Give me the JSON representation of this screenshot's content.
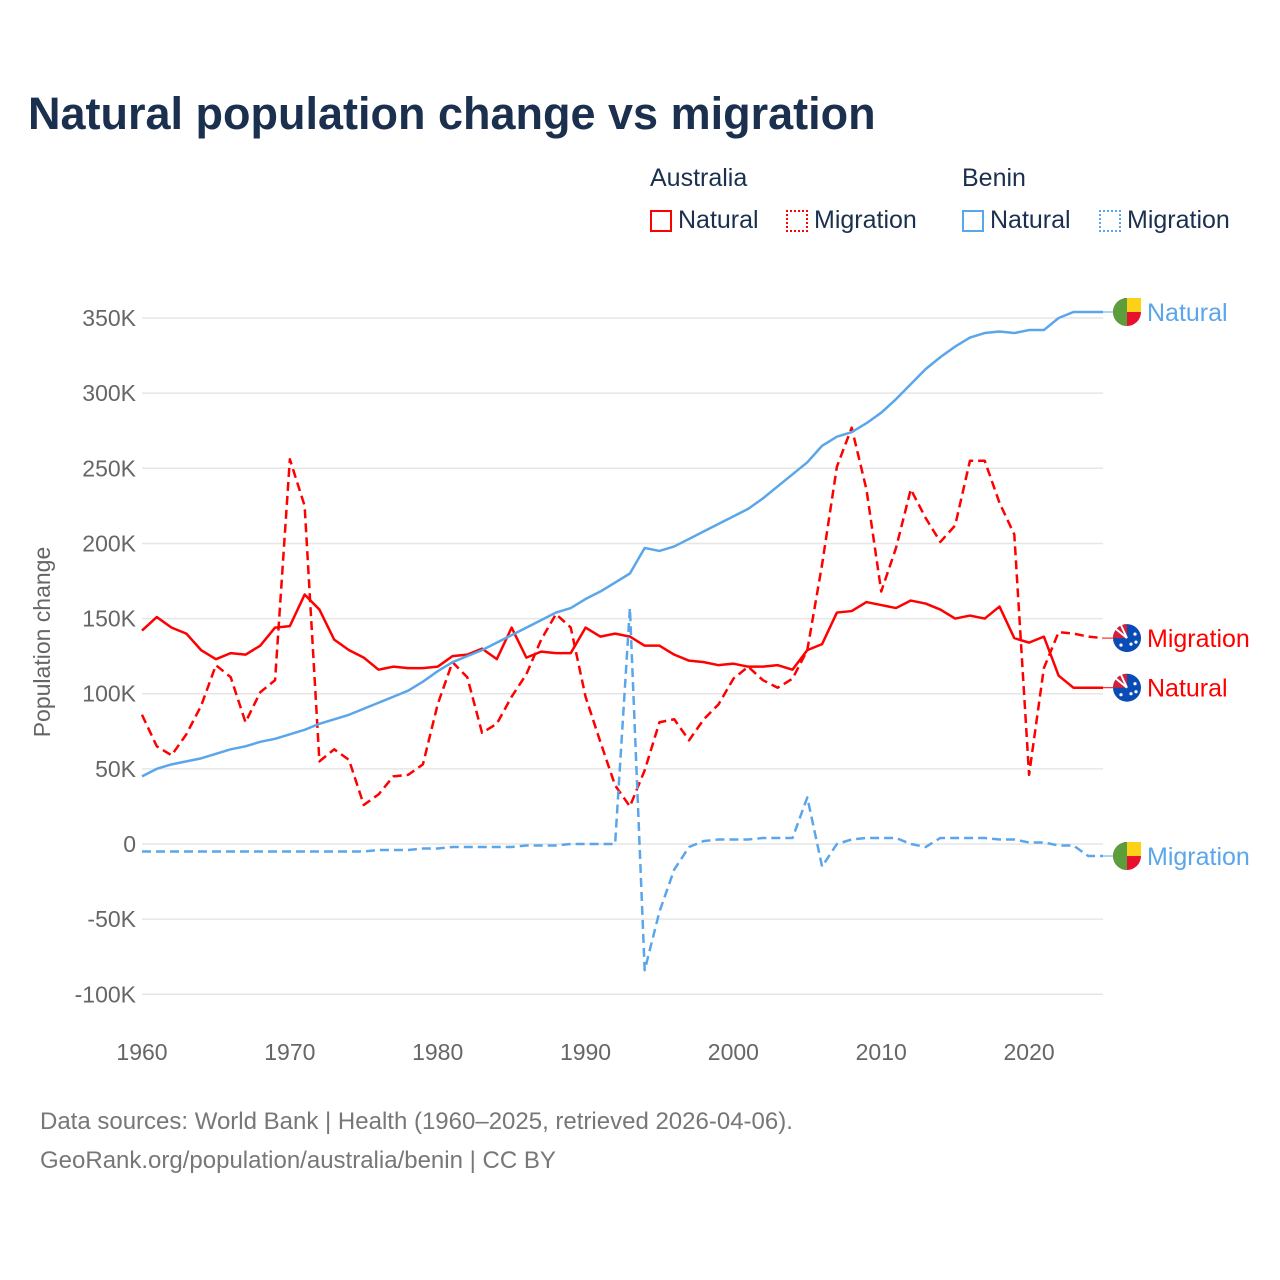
{
  "title": "Natural population change vs migration",
  "legend": {
    "groups": [
      {
        "name": "Australia",
        "color": "#ff0000",
        "items": [
          "Natural",
          "Migration"
        ]
      },
      {
        "name": "Benin",
        "color": "#5ba6ea",
        "items": [
          "Natural",
          "Migration"
        ]
      }
    ]
  },
  "footer": {
    "line1": "Data sources: World Bank | Health (1960–2025, retrieved 2026-04-06).",
    "line2": "GeoRank.org/population/australia/benin | CC BY"
  },
  "chart_data": {
    "type": "line",
    "title": "Natural population change vs migration",
    "xlabel": "",
    "ylabel": "Population change",
    "xlim": [
      1960,
      2025
    ],
    "ylim": [
      -100000,
      350000
    ],
    "x_ticks": [
      1960,
      1970,
      1980,
      1990,
      2000,
      2010,
      2020
    ],
    "x_tick_labels": [
      "1960",
      "1970",
      "1980",
      "1990",
      "2000",
      "2010",
      "2020"
    ],
    "y_ticks": [
      -100000,
      -50000,
      0,
      50000,
      100000,
      150000,
      200000,
      250000,
      300000,
      350000
    ],
    "y_tick_labels": [
      "-100K",
      "-50K",
      "0",
      "50K",
      "100K",
      "150K",
      "200K",
      "250K",
      "300K",
      "350K"
    ],
    "grid": true,
    "legend_position": "top-right",
    "x_start": 1960,
    "series": [
      {
        "name": "Australia Natural",
        "end_label": "Natural",
        "country": "australia",
        "color": "#ff0000",
        "dash": false,
        "values": [
          142,
          151,
          144,
          140,
          129,
          123,
          127,
          126,
          132,
          144,
          145,
          166,
          156,
          136,
          129,
          124,
          116,
          118,
          117,
          117,
          118,
          125,
          126,
          130,
          123,
          144,
          124,
          128,
          127,
          127,
          144,
          138,
          140,
          138,
          132,
          132,
          126,
          122,
          121,
          119,
          120,
          118,
          118,
          119,
          116,
          129,
          133,
          154,
          155,
          161,
          159,
          157,
          162,
          160,
          156,
          150,
          152,
          150,
          158,
          137,
          134,
          138,
          112,
          104,
          104,
          104
        ]
      },
      {
        "name": "Australia Migration",
        "end_label": "Migration",
        "country": "australia",
        "color": "#ff0000",
        "dash": true,
        "values": [
          86,
          65,
          59,
          73,
          92,
          119,
          111,
          81,
          101,
          109,
          256,
          225,
          55,
          63,
          56,
          26,
          33,
          45,
          46,
          53,
          93,
          121,
          111,
          74,
          80,
          98,
          113,
          136,
          153,
          144,
          98,
          68,
          39,
          25,
          49,
          81,
          83,
          69,
          83,
          93,
          110,
          118,
          109,
          104,
          110,
          129,
          186,
          251,
          277,
          236,
          168,
          197,
          236,
          217,
          201,
          212,
          255,
          255,
          227,
          206,
          46,
          117,
          141,
          140,
          138,
          137
        ]
      },
      {
        "name": "Benin Natural",
        "end_label": "Natural",
        "country": "benin",
        "color": "#5ba6ea",
        "dash": false,
        "values": [
          45,
          50,
          53,
          55,
          57,
          60,
          63,
          65,
          68,
          70,
          73,
          76,
          80,
          83,
          86,
          90,
          94,
          98,
          102,
          108,
          115,
          121,
          125,
          129,
          134,
          139,
          144,
          149,
          154,
          157,
          163,
          168,
          174,
          180,
          197,
          195,
          198,
          203,
          208,
          213,
          218,
          223,
          230,
          238,
          246,
          254,
          265,
          271,
          274,
          280,
          287,
          296,
          306,
          316,
          324,
          331,
          337,
          340,
          341,
          340,
          342,
          342,
          350,
          354,
          354,
          354
        ]
      },
      {
        "name": "Benin Migration",
        "end_label": "Migration",
        "country": "benin",
        "color": "#5ba6ea",
        "dash": true,
        "values": [
          -5,
          -5,
          -5,
          -5,
          -5,
          -5,
          -5,
          -5,
          -5,
          -5,
          -5,
          -5,
          -5,
          -5,
          -5,
          -5,
          -4,
          -4,
          -4,
          -3,
          -3,
          -2,
          -2,
          -2,
          -2,
          -2,
          -1,
          -1,
          -1,
          0,
          0,
          0,
          0,
          157,
          -84,
          -45,
          -17,
          -2,
          2,
          3,
          3,
          3,
          4,
          4,
          4,
          31,
          -15,
          0,
          3,
          4,
          4,
          4,
          0,
          -2,
          4,
          4,
          4,
          4,
          3,
          3,
          1,
          1,
          -1,
          -1,
          -8,
          -8
        ]
      }
    ],
    "value_unit": "thousands"
  }
}
